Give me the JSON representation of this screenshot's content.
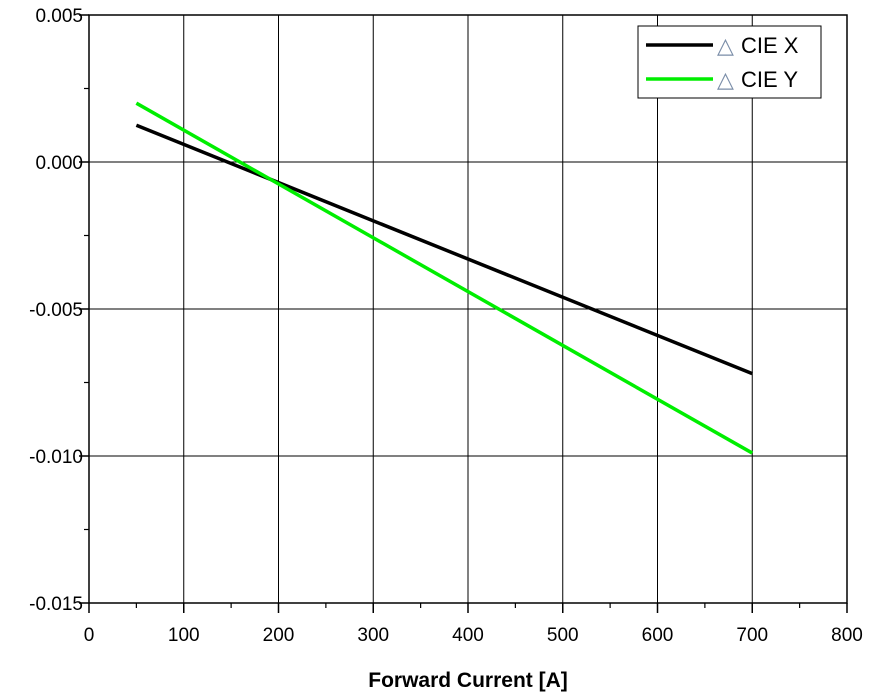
{
  "chart_data": {
    "type": "line",
    "xlabel": "Forward Current [A]",
    "ylabel": "",
    "xlim": [
      0,
      800
    ],
    "ylim": [
      -0.015,
      0.005
    ],
    "x_ticks": [
      0,
      100,
      200,
      300,
      400,
      500,
      600,
      700,
      800
    ],
    "y_ticks": [
      0.005,
      0.0,
      -0.005,
      -0.01,
      -0.015
    ],
    "x_tick_labels": [
      "0",
      "100",
      "200",
      "300",
      "400",
      "500",
      "600",
      "700",
      "800"
    ],
    "y_tick_labels": [
      "0.005",
      "0.000",
      "-0.005",
      "-0.010",
      "-0.015"
    ],
    "grid": true,
    "legend_position": "top-right",
    "series": [
      {
        "name": "CIE X",
        "color": "#000000",
        "x": [
          50,
          700
        ],
        "y": [
          0.00125,
          -0.0072
        ]
      },
      {
        "name": "CIE Y",
        "color": "#00ee00",
        "x": [
          50,
          700
        ],
        "y": [
          0.002,
          -0.0099
        ]
      }
    ],
    "legend": [
      {
        "symbol": "△",
        "label": "CIE X"
      },
      {
        "symbol": "△",
        "label": "CIE Y"
      }
    ]
  }
}
